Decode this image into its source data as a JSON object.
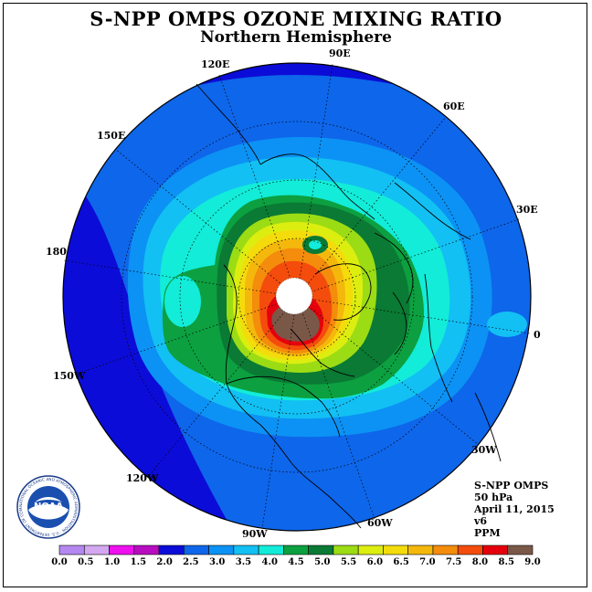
{
  "header": {
    "title": "S-NPP OMPS OZONE MIXING RATIO",
    "subtitle": "Northern Hemisphere"
  },
  "map": {
    "projection": "north polar stereographic",
    "longitude_labels": [
      "90E",
      "60E",
      "30E",
      "0",
      "30W",
      "60W",
      "90W",
      "120W",
      "150W",
      "180",
      "150E",
      "120E"
    ],
    "no_data_region": "north pole",
    "field_ppm": {
      "outer": "1.5-2.0",
      "mid_latitudes": "2.0-3.5",
      "vortex_ring": "4.0-5.0",
      "polar_core": "6.0-9.0"
    }
  },
  "info": {
    "instrument": "S-NPP OMPS",
    "level": "50 hPa",
    "date": "April 11, 2015",
    "version": "v6",
    "units": "PPM"
  },
  "colorbar": {
    "ticks": [
      "0.0",
      "0.5",
      "1.0",
      "1.5",
      "2.0",
      "2.5",
      "3.0",
      "3.5",
      "4.0",
      "4.5",
      "5.0",
      "5.5",
      "6.0",
      "6.5",
      "7.0",
      "7.5",
      "8.0",
      "8.5",
      "9.0"
    ],
    "colors": [
      "#b488f0",
      "#d4a8f0",
      "#ee10ee",
      "#b80cc0",
      "#0c0cd8",
      "#0e66ea",
      "#0c92f4",
      "#12c0f4",
      "#12ecd8",
      "#0ca040",
      "#0a7a34",
      "#9cdc14",
      "#dcee10",
      "#f4dc0c",
      "#f4b80c",
      "#f48c0c",
      "#f44c0c",
      "#e4000c",
      "#7a5848"
    ]
  },
  "logo": {
    "text": "NOAA",
    "ring_text": "NATIONAL OCEANIC AND ATMOSPHERIC ADMINISTRATION · U.S. DEPARTMENT OF COMMERCE"
  }
}
